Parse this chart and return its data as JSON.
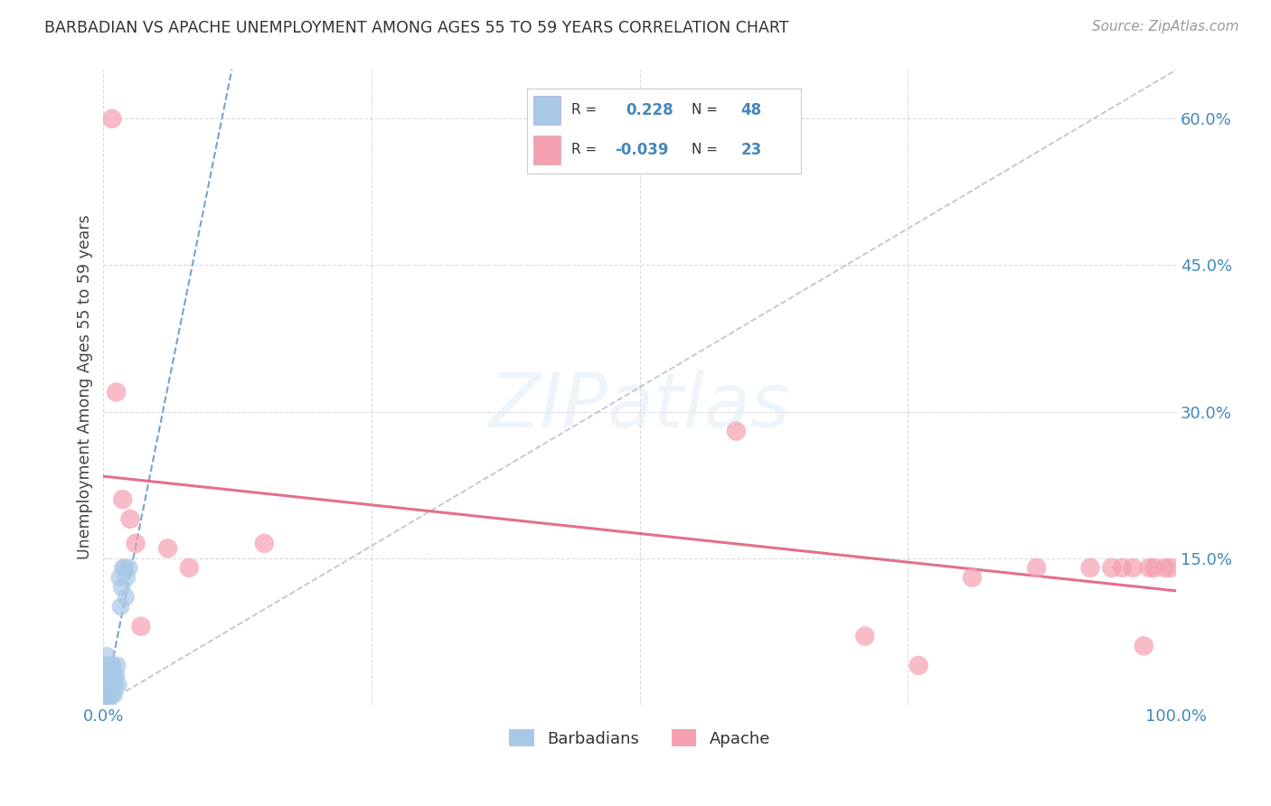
{
  "title": "BARBADIAN VS APACHE UNEMPLOYMENT AMONG AGES 55 TO 59 YEARS CORRELATION CHART",
  "source": "Source: ZipAtlas.com",
  "ylabel": "Unemployment Among Ages 55 to 59 years",
  "xlim": [
    0.0,
    1.0
  ],
  "ylim": [
    0.0,
    0.65
  ],
  "xticks": [
    0.0,
    0.25,
    0.5,
    0.75,
    1.0
  ],
  "xtick_labels": [
    "0.0%",
    "",
    "",
    "",
    "100.0%"
  ],
  "yticks": [
    0.0,
    0.15,
    0.3,
    0.45,
    0.6
  ],
  "ytick_labels": [
    "",
    "15.0%",
    "30.0%",
    "45.0%",
    "60.0%"
  ],
  "barbadian_color": "#a8c8e8",
  "apache_color": "#f4a0b0",
  "trend_blue_color": "#6699cc",
  "trend_pink_color": "#e06080",
  "diagonal_color": "#b8b8cc",
  "watermark": "ZIPatlas",
  "background_color": "#ffffff",
  "grid_color": "#cccccc",
  "barbadian_x": [
    0.001,
    0.001,
    0.001,
    0.001,
    0.001,
    0.002,
    0.002,
    0.002,
    0.002,
    0.002,
    0.003,
    0.003,
    0.003,
    0.003,
    0.003,
    0.004,
    0.004,
    0.004,
    0.004,
    0.004,
    0.005,
    0.005,
    0.005,
    0.005,
    0.006,
    0.006,
    0.006,
    0.007,
    0.007,
    0.007,
    0.008,
    0.008,
    0.009,
    0.009,
    0.01,
    0.01,
    0.011,
    0.012,
    0.013,
    0.014,
    0.015,
    0.016,
    0.017,
    0.018,
    0.02,
    0.021,
    0.022,
    0.024
  ],
  "barbadian_y": [
    0.0,
    0.01,
    0.02,
    0.03,
    0.04,
    0.0,
    0.01,
    0.02,
    0.03,
    0.04,
    0.0,
    0.01,
    0.02,
    0.03,
    0.05,
    0.0,
    0.01,
    0.02,
    0.03,
    0.04,
    0.01,
    0.02,
    0.03,
    0.04,
    0.01,
    0.02,
    0.03,
    0.01,
    0.02,
    0.04,
    0.01,
    0.03,
    0.02,
    0.04,
    0.01,
    0.03,
    0.02,
    0.03,
    0.04,
    0.02,
    0.13,
    0.1,
    0.12,
    0.14,
    0.14,
    0.11,
    0.13,
    0.14
  ],
  "apache_x": [
    0.008,
    0.012,
    0.018,
    0.025,
    0.03,
    0.035,
    0.06,
    0.08,
    0.15,
    0.59,
    0.71,
    0.76,
    0.81,
    0.87,
    0.92,
    0.94,
    0.95,
    0.96,
    0.97,
    0.975,
    0.98,
    0.99,
    0.995
  ],
  "apache_y": [
    0.6,
    0.32,
    0.21,
    0.19,
    0.165,
    0.08,
    0.16,
    0.14,
    0.165,
    0.28,
    0.07,
    0.04,
    0.13,
    0.14,
    0.14,
    0.14,
    0.14,
    0.14,
    0.06,
    0.14,
    0.14,
    0.14,
    0.14
  ]
}
